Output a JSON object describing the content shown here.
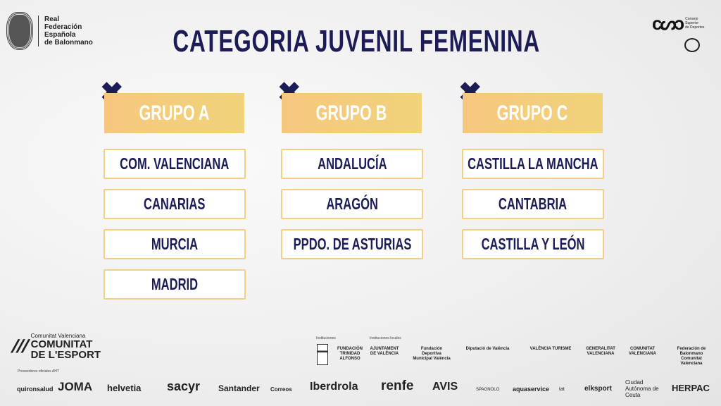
{
  "header": {
    "title": "CATEGORIA JUVENIL FEMENINA",
    "rfeb": [
      "Real",
      "Federación",
      "Española",
      "de Balonmano"
    ],
    "csd": [
      "Consejo",
      "Superior",
      "de Deportes"
    ]
  },
  "groups": [
    {
      "label": "GRUPO A",
      "mark": "✖",
      "teams": [
        "COM. VALENCIANA",
        "CANARIAS",
        "MURCIA",
        "MADRID"
      ]
    },
    {
      "label": "GRUPO B",
      "mark": "✖",
      "teams": [
        "ANDALUCÍA",
        "ARAGÓN",
        "PPDO. DE ASTURIAS"
      ]
    },
    {
      "label": "GRUPO C",
      "mark": "✖",
      "teams": [
        "CASTILLA LA MANCHA",
        "CANTABRIA",
        "CASTILLA Y LEÓN"
      ]
    }
  ],
  "colors": {
    "navy": "#1c1d57",
    "gold": "#f3cc7e"
  },
  "footer": {
    "comunitat": {
      "top": "Comunitat Valenciana",
      "l1": "COMUNITAT",
      "l2": "DE L'ESPORT"
    },
    "proveedores": "Proveedores oficiales AHT",
    "instituciones": "Instituciones",
    "instituciones_locales": "Instituciones locales",
    "institution_logos": [
      "FUNDACIÓN TRINIDAD ALFONSO",
      "AJUNTAMENT DE VALÈNCIA",
      "Fundación Deportiva Municipal València",
      "Diputació de València",
      "VALÈNCIA TURISME",
      "GENERALITAT VALENCIANA",
      "COMUNITAT VALENCIANA",
      "Federación de Balonmano Comunitat Valenciana"
    ],
    "sponsors": [
      "quironsalud",
      "JOMA",
      "helvetia",
      "sacyr",
      "Santander",
      "Correos",
      "Iberdrola",
      "renfe",
      "AVIS",
      "SPAGNOLO",
      "aquaservice",
      "tat",
      "elksport",
      "Ciudad Autónoma de Ceuta",
      "HERPAC"
    ]
  }
}
